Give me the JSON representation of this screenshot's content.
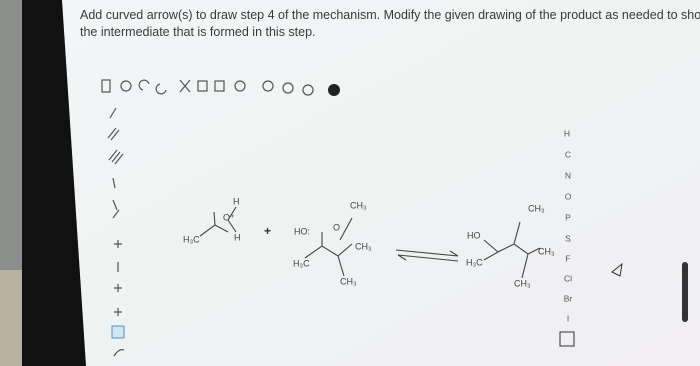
{
  "instruction": "Add curved arrow(s) to draw step 4 of the mechanism. Modify the given drawing of the product as needed to show the intermediate that is formed in this step.",
  "elements": [
    "H",
    "C",
    "N",
    "O",
    "P",
    "S",
    "F",
    "Cl",
    "Br",
    "I"
  ],
  "reactant_1": {
    "methyl": "H₃C",
    "hydrogen_top": "H",
    "oxygen": "O⁺",
    "hydrogen_right": "H"
  },
  "plus": "+",
  "reactant_2": {
    "hydroxide": "HO:",
    "methyl_left": "H₃C",
    "oxygen": "O",
    "methyl_top": "CH₃",
    "methyl_right": "CH₃",
    "methyl_bottom": "CH₃"
  },
  "product": {
    "hydroxyl": "HO",
    "methyl_left": "H₃C",
    "methyl_top": "CH₃",
    "methyl_right": "CH₃",
    "methyl_bottom": "CH₃"
  }
}
